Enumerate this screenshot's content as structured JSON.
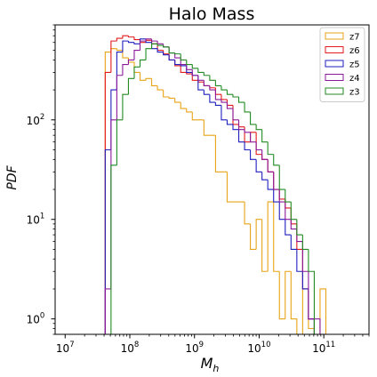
{
  "chart_data": {
    "type": "histogram-step",
    "title": "Halo Mass",
    "xlabel": "M_h",
    "ylabel": "PDF",
    "xscale": "log",
    "yscale": "log",
    "xlim": [
      7000000,
      500000000000
    ],
    "ylim": [
      0.7,
      900
    ],
    "legend_location": "upper right",
    "x_ticks": [
      {
        "value": 10000000,
        "mantissa": "10",
        "exponent": "7"
      },
      {
        "value": 100000000,
        "mantissa": "10",
        "exponent": "8"
      },
      {
        "value": 1000000000,
        "mantissa": "10",
        "exponent": "9"
      },
      {
        "value": 10000000000,
        "mantissa": "10",
        "exponent": "10"
      },
      {
        "value": 100000000000,
        "mantissa": "10",
        "exponent": "11"
      }
    ],
    "y_ticks": [
      {
        "value": 1,
        "mantissa": "10",
        "exponent": "0"
      },
      {
        "value": 10,
        "mantissa": "10",
        "exponent": "1"
      },
      {
        "value": 100,
        "mantissa": "10",
        "exponent": "2"
      }
    ],
    "bin_log_start": 7.44,
    "bin_log_width": 0.0898,
    "series": [
      {
        "name": "z7",
        "color": "#e8a317",
        "values": [
          0,
          0,
          480,
          520,
          500,
          420,
          380,
          300,
          250,
          260,
          220,
          200,
          170,
          165,
          150,
          130,
          120,
          100,
          100,
          70,
          70,
          30,
          30,
          15,
          15,
          15,
          9,
          5,
          10,
          3,
          15,
          3,
          1,
          3,
          1,
          0,
          2,
          0.8,
          0,
          2,
          0,
          0,
          0,
          0,
          0,
          0,
          0,
          0,
          0,
          0
        ]
      },
      {
        "name": "z6",
        "color": "#e41a1c",
        "values": [
          0,
          0,
          300,
          620,
          660,
          700,
          680,
          640,
          600,
          630,
          580,
          500,
          460,
          400,
          350,
          300,
          290,
          250,
          240,
          220,
          210,
          180,
          160,
          140,
          90,
          85,
          60,
          75,
          45,
          40,
          30,
          20,
          16,
          13,
          9,
          5,
          2,
          1,
          0,
          0,
          0,
          0,
          0,
          0,
          0,
          0,
          0,
          0,
          0,
          0
        ]
      },
      {
        "name": "z5",
        "color": "#1f1fbf",
        "values": [
          0,
          0,
          50,
          200,
          480,
          620,
          600,
          580,
          650,
          600,
          520,
          480,
          450,
          400,
          360,
          350,
          300,
          280,
          200,
          180,
          150,
          140,
          100,
          90,
          80,
          60,
          50,
          40,
          30,
          25,
          20,
          15,
          10,
          7,
          5,
          3,
          2,
          1,
          0,
          0,
          0,
          0,
          0,
          0,
          0,
          0,
          0,
          0,
          0,
          0
        ]
      },
      {
        "name": "z4",
        "color": "#8b1a9b",
        "values": [
          0,
          0,
          2,
          100,
          280,
          360,
          400,
          500,
          620,
          650,
          620,
          580,
          540,
          470,
          420,
          360,
          320,
          280,
          250,
          220,
          200,
          160,
          150,
          130,
          100,
          80,
          75,
          60,
          50,
          40,
          30,
          20,
          15,
          10,
          8,
          6,
          3,
          1,
          1,
          0,
          0,
          0,
          0,
          0,
          0,
          0,
          0,
          0,
          0,
          0
        ]
      },
      {
        "name": "z3",
        "color": "#228b22",
        "values": [
          0,
          0,
          0,
          35,
          100,
          180,
          260,
          340,
          400,
          520,
          580,
          560,
          540,
          470,
          460,
          400,
          360,
          330,
          300,
          280,
          250,
          220,
          200,
          180,
          170,
          150,
          120,
          90,
          80,
          60,
          45,
          35,
          20,
          15,
          10,
          7,
          5,
          3,
          0,
          0,
          0,
          0,
          0,
          0,
          0,
          0,
          0,
          0,
          0,
          0
        ]
      }
    ]
  }
}
